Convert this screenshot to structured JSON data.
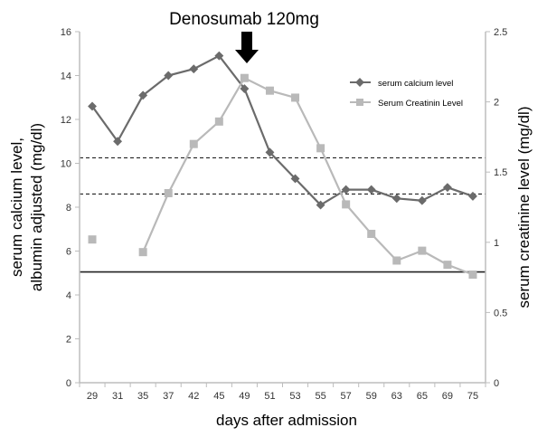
{
  "chart_data": {
    "type": "line",
    "title": "",
    "annotation": "Denosumab 120mg",
    "annotation_at": "49",
    "xlabel": "days after admission",
    "ylabel_left": [
      "serum calcium level,",
      "albumin adjusted (mg/dl)"
    ],
    "ylabel_right": "serum creatinine level (mg/dl)",
    "categories": [
      "29",
      "31",
      "35",
      "37",
      "42",
      "45",
      "49",
      "51",
      "53",
      "55",
      "57",
      "59",
      "63",
      "65",
      "69",
      "75"
    ],
    "ylim_left": [
      0,
      16
    ],
    "ylim_right": [
      0,
      2.5
    ],
    "yticks_left": [
      "0",
      "2",
      "4",
      "6",
      "8",
      "10",
      "12",
      "14",
      "16"
    ],
    "yticks_right": [
      "0",
      "0.5",
      "1",
      "1.5",
      "2",
      "2.5"
    ],
    "series": [
      {
        "name": "serum calcium level",
        "axis": "left",
        "color": "#6b6b6b",
        "marker": "diamond",
        "values": [
          12.6,
          11.0,
          13.1,
          14.0,
          14.3,
          14.9,
          13.4,
          10.5,
          9.3,
          8.1,
          8.8,
          8.8,
          8.4,
          8.3,
          8.9,
          8.5
        ]
      },
      {
        "name": "Serum Creatinin Level",
        "axis": "right",
        "color": "#b9b9b9",
        "marker": "square",
        "values": [
          1.02,
          null,
          0.93,
          1.35,
          1.7,
          1.86,
          2.17,
          2.08,
          2.03,
          1.67,
          1.27,
          1.06,
          0.87,
          0.94,
          0.84,
          0.77
        ]
      }
    ],
    "reference_lines_left": [
      {
        "value": 10.25,
        "style": "dashed"
      },
      {
        "value": 8.6,
        "style": "dashed"
      },
      {
        "value": 5.05,
        "style": "solid"
      }
    ],
    "legend_position": "top-right"
  }
}
